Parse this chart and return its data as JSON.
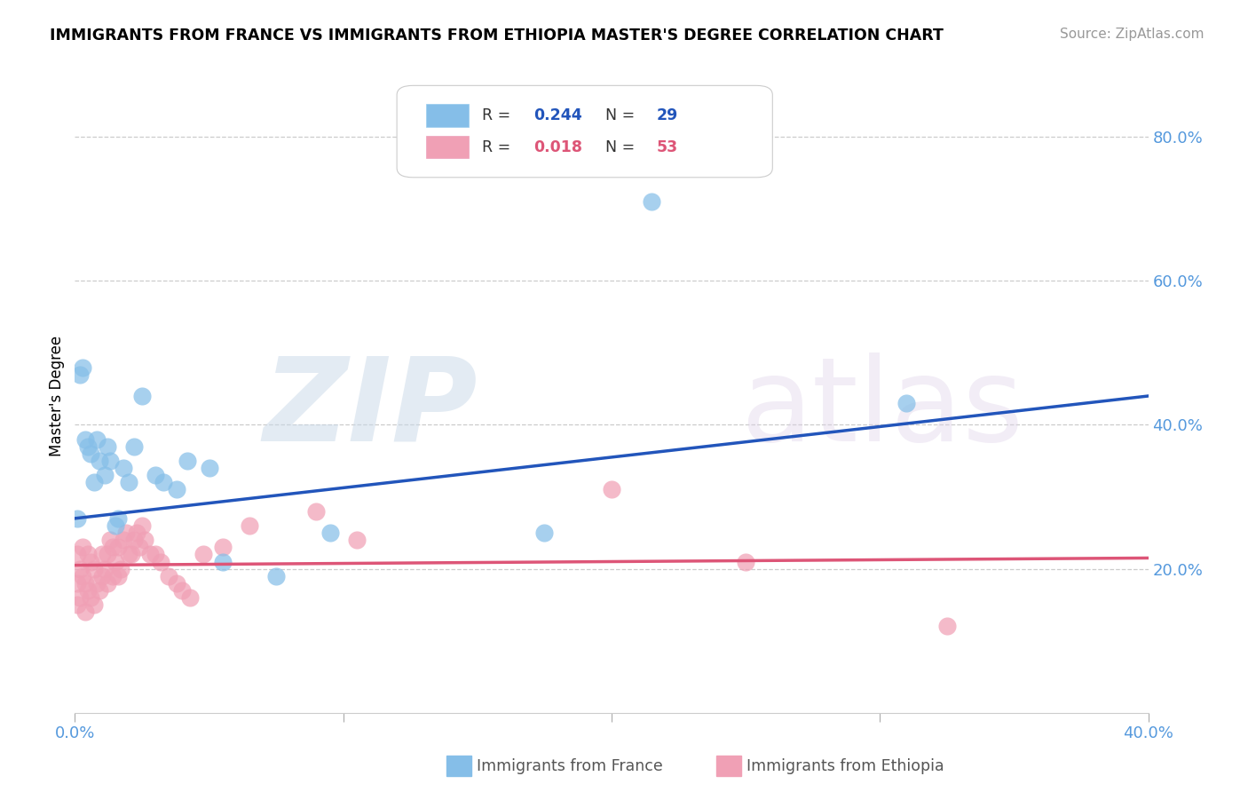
{
  "title": "IMMIGRANTS FROM FRANCE VS IMMIGRANTS FROM ETHIOPIA MASTER'S DEGREE CORRELATION CHART",
  "source": "Source: ZipAtlas.com",
  "ylabel": "Master's Degree",
  "right_yticks": [
    0.2,
    0.4,
    0.6,
    0.8
  ],
  "right_yticklabels": [
    "20.0%",
    "40.0%",
    "60.0%",
    "80.0%"
  ],
  "xlim": [
    0.0,
    0.4
  ],
  "ylim": [
    0.0,
    0.88
  ],
  "france_R": 0.244,
  "france_N": 29,
  "ethiopia_R": 0.018,
  "ethiopia_N": 53,
  "france_color": "#85BEE8",
  "ethiopia_color": "#F0A0B5",
  "france_line_color": "#2255BB",
  "ethiopia_line_color": "#DD5577",
  "france_points_x": [
    0.001,
    0.002,
    0.003,
    0.004,
    0.005,
    0.006,
    0.007,
    0.008,
    0.009,
    0.011,
    0.012,
    0.013,
    0.015,
    0.016,
    0.018,
    0.02,
    0.022,
    0.025,
    0.03,
    0.033,
    0.038,
    0.042,
    0.055,
    0.075,
    0.095,
    0.175,
    0.215,
    0.31,
    0.05
  ],
  "france_points_y": [
    0.27,
    0.47,
    0.48,
    0.38,
    0.37,
    0.36,
    0.32,
    0.38,
    0.35,
    0.33,
    0.37,
    0.35,
    0.26,
    0.27,
    0.34,
    0.32,
    0.37,
    0.44,
    0.33,
    0.32,
    0.31,
    0.35,
    0.21,
    0.19,
    0.25,
    0.25,
    0.71,
    0.43,
    0.34
  ],
  "ethiopia_points_x": [
    0.001,
    0.001,
    0.001,
    0.002,
    0.002,
    0.003,
    0.003,
    0.004,
    0.004,
    0.005,
    0.005,
    0.006,
    0.006,
    0.007,
    0.007,
    0.008,
    0.009,
    0.01,
    0.01,
    0.011,
    0.012,
    0.012,
    0.013,
    0.014,
    0.014,
    0.015,
    0.016,
    0.016,
    0.017,
    0.018,
    0.019,
    0.02,
    0.021,
    0.022,
    0.023,
    0.024,
    0.025,
    0.026,
    0.028,
    0.03,
    0.032,
    0.035,
    0.038,
    0.04,
    0.043,
    0.048,
    0.055,
    0.065,
    0.09,
    0.105,
    0.2,
    0.25,
    0.325
  ],
  "ethiopia_points_y": [
    0.22,
    0.18,
    0.15,
    0.2,
    0.16,
    0.23,
    0.19,
    0.18,
    0.14,
    0.22,
    0.17,
    0.21,
    0.16,
    0.2,
    0.15,
    0.18,
    0.17,
    0.22,
    0.19,
    0.2,
    0.22,
    0.18,
    0.24,
    0.23,
    0.19,
    0.21,
    0.23,
    0.19,
    0.2,
    0.24,
    0.25,
    0.22,
    0.22,
    0.24,
    0.25,
    0.23,
    0.26,
    0.24,
    0.22,
    0.22,
    0.21,
    0.19,
    0.18,
    0.17,
    0.16,
    0.22,
    0.23,
    0.26,
    0.28,
    0.24,
    0.31,
    0.21,
    0.12
  ],
  "france_trendline_x": [
    0.0,
    0.4
  ],
  "france_trendline_y": [
    0.27,
    0.44
  ],
  "ethiopia_trendline_x": [
    0.0,
    0.4
  ],
  "ethiopia_trendline_y": [
    0.205,
    0.215
  ],
  "watermark_zip_text": "ZIP",
  "watermark_atlas_text": "atlas",
  "legend_R1": "0.244",
  "legend_N1": "29",
  "legend_R2": "0.018",
  "legend_N2": "53"
}
